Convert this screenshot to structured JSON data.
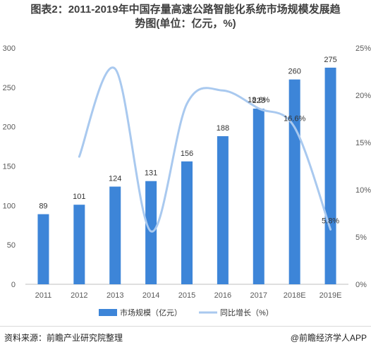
{
  "title": {
    "line1": "图表2：2011-2019年中国存量高速公路智能化系统市场规模发展趋",
    "line2": "势图(单位：亿元，%)"
  },
  "chart_data": {
    "type": "bar",
    "categories": [
      "2011",
      "2012",
      "2013",
      "2014",
      "2015",
      "2016",
      "2017",
      "2018E",
      "2019E"
    ],
    "series": [
      {
        "name": "市场规模（亿元）",
        "type": "bar",
        "axis": "left",
        "values": [
          89,
          101,
          124,
          131,
          156,
          188,
          223,
          260,
          275
        ],
        "labels": [
          "89",
          "101",
          "124",
          "131",
          "156",
          "188",
          "223",
          "260",
          "275"
        ],
        "color": "#3d85d8"
      },
      {
        "name": "同比增长（%）",
        "type": "line",
        "axis": "right",
        "values": [
          null,
          13.5,
          22.8,
          5.6,
          19.1,
          20.5,
          18.6,
          16.6,
          5.8
        ],
        "color": "#a9c9ef"
      }
    ],
    "line_labels": [
      {
        "index": 6,
        "text": "18.6%"
      },
      {
        "index": 7,
        "text": "16.6%"
      },
      {
        "index": 8,
        "text": "5.8%"
      }
    ],
    "ylim_left": [
      0,
      300
    ],
    "yticks_left": [
      "0",
      "50",
      "100",
      "150",
      "200",
      "250",
      "300"
    ],
    "ylim_right": [
      0,
      25
    ],
    "yticks_right": [
      "0%",
      "5%",
      "10%",
      "15%",
      "20%",
      "25%"
    ],
    "legend_position": "bottom"
  },
  "footer": {
    "source": "资料来源：前瞻产业研究院整理",
    "brand": "@前瞻经济学人APP"
  }
}
